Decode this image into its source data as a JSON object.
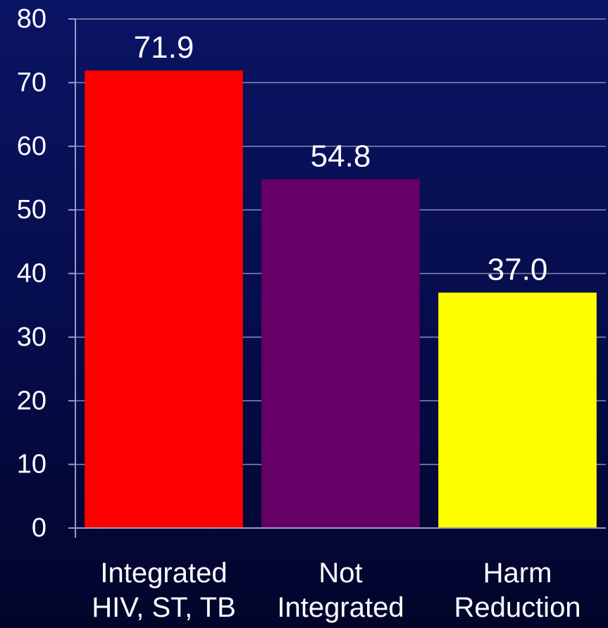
{
  "chart_data": {
    "type": "bar",
    "categories": [
      [
        "Integrated",
        "HIV, ST, TB"
      ],
      [
        "Not",
        "Integrated"
      ],
      [
        "Harm",
        "Reduction"
      ]
    ],
    "values": [
      71.9,
      54.8,
      37.0
    ],
    "value_labels": [
      "71.9",
      "54.8",
      "37.0"
    ],
    "ylim": [
      0,
      80
    ],
    "yticks": [
      0,
      10,
      20,
      30,
      40,
      50,
      60,
      70,
      80
    ],
    "grid": true,
    "colors": {
      "bars": [
        "#ff0000",
        "#660066",
        "#ffff00"
      ],
      "grid": "#8a8ab8",
      "axis": "#9a9ac8",
      "text": "#ffffff"
    }
  }
}
